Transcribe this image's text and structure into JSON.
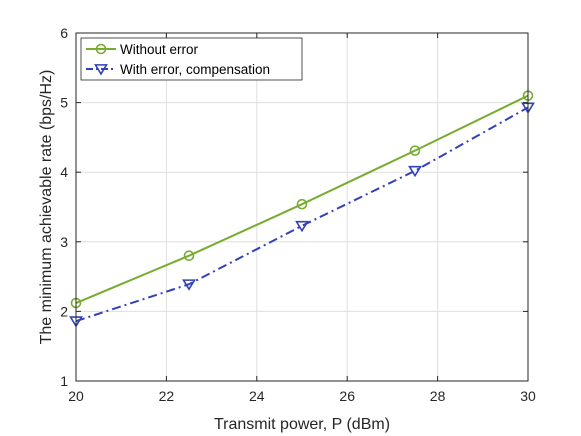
{
  "chart_data": {
    "type": "line",
    "x": [
      20,
      22.5,
      25,
      27.5,
      30
    ],
    "xlabel": "Transmit power, P (dBm)",
    "ylabel": "The minimum achievable rate (bps/Hz)",
    "xlim": [
      20,
      30
    ],
    "ylim": [
      1,
      6
    ],
    "xticks": [
      "20",
      "22",
      "24",
      "26",
      "28",
      "30"
    ],
    "yticks": [
      "1",
      "2",
      "3",
      "4",
      "5",
      "6"
    ],
    "grid": true,
    "legend_position": "top-left",
    "series": [
      {
        "name": "Without error",
        "values": [
          2.12,
          2.8,
          3.54,
          4.31,
          5.1
        ],
        "color": "#77AC30",
        "marker": "circle-icon",
        "line_style": "solid"
      },
      {
        "name": "With error, compensation",
        "values": [
          1.86,
          2.39,
          3.23,
          4.02,
          4.93
        ],
        "color": "#3341B5",
        "marker": "triangle-down-icon",
        "line_style": "dashdot"
      }
    ]
  }
}
